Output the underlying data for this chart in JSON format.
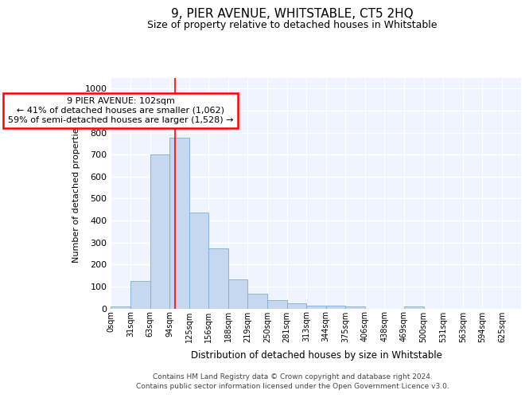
{
  "title": "9, PIER AVENUE, WHITSTABLE, CT5 2HQ",
  "subtitle": "Size of property relative to detached houses in Whitstable",
  "xlabel": "Distribution of detached houses by size in Whitstable",
  "ylabel": "Number of detached properties",
  "annotation_line1": "9 PIER AVENUE: 102sqm",
  "annotation_line2": "← 41% of detached houses are smaller (1,062)",
  "annotation_line3": "59% of semi-detached houses are larger (1,528) →",
  "categories": [
    "0sqm",
    "31sqm",
    "63sqm",
    "94sqm",
    "125sqm",
    "156sqm",
    "188sqm",
    "219sqm",
    "250sqm",
    "281sqm",
    "313sqm",
    "344sqm",
    "375sqm",
    "406sqm",
    "438sqm",
    "469sqm",
    "500sqm",
    "531sqm",
    "563sqm",
    "594sqm",
    "625sqm"
  ],
  "values": [
    8,
    125,
    700,
    775,
    438,
    275,
    133,
    68,
    38,
    25,
    13,
    13,
    8,
    0,
    0,
    8,
    0,
    0,
    0,
    0,
    0
  ],
  "bar_color": "#c5d8f0",
  "bar_edge_color": "#7aadd4",
  "ylim": [
    0,
    1050
  ],
  "yticks": [
    0,
    100,
    200,
    300,
    400,
    500,
    600,
    700,
    800,
    900,
    1000
  ],
  "background_color": "#ffffff",
  "plot_bg_color": "#f0f4ff",
  "grid_color": "#ffffff",
  "footer_line1": "Contains HM Land Registry data © Crown copyright and database right 2024.",
  "footer_line2": "Contains public sector information licensed under the Open Government Licence v3.0."
}
